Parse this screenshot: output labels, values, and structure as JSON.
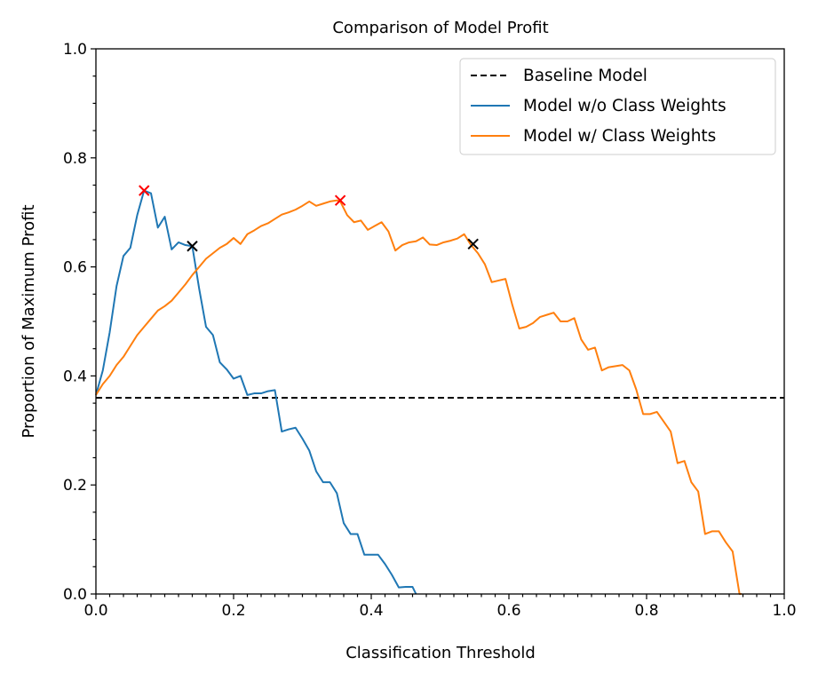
{
  "chart_data": {
    "type": "line",
    "title": "Comparison of Model Profit",
    "xlabel": "Classification Threshold",
    "ylabel": "Proportion of Maximum Profit",
    "xlim": [
      0,
      1
    ],
    "ylim": [
      0,
      1
    ],
    "xticks": [
      "0.0",
      "0.2",
      "0.4",
      "0.6",
      "0.8",
      "1.0"
    ],
    "yticks": [
      "0.0",
      "0.2",
      "0.4",
      "0.6",
      "0.8",
      "1.0"
    ],
    "grid": false,
    "legend_position": "upper-right",
    "series": [
      {
        "name": "Baseline Model",
        "style": "dashed",
        "color": "#000000",
        "x": [
          0,
          1
        ],
        "y": [
          0.36,
          0.36
        ]
      },
      {
        "name": "Model w/o Class Weights",
        "style": "solid",
        "color": "#1f77b4",
        "x": [
          0.0,
          0.01,
          0.02,
          0.03,
          0.04,
          0.05,
          0.06,
          0.07,
          0.08,
          0.09,
          0.1,
          0.11,
          0.12,
          0.13,
          0.14,
          0.15,
          0.16,
          0.17,
          0.18,
          0.19,
          0.2,
          0.21,
          0.22,
          0.23,
          0.24,
          0.25,
          0.26,
          0.27,
          0.28,
          0.29,
          0.3,
          0.31,
          0.32,
          0.33,
          0.34,
          0.35,
          0.36,
          0.37,
          0.38,
          0.39,
          0.4,
          0.41,
          0.42,
          0.43,
          0.44,
          0.45,
          0.46,
          0.465
        ],
        "y": [
          0.365,
          0.41,
          0.48,
          0.565,
          0.62,
          0.635,
          0.695,
          0.74,
          0.735,
          0.672,
          0.692,
          0.632,
          0.645,
          0.64,
          0.638,
          0.56,
          0.49,
          0.475,
          0.425,
          0.412,
          0.395,
          0.4,
          0.365,
          0.368,
          0.368,
          0.372,
          0.374,
          0.298,
          0.302,
          0.305,
          0.285,
          0.263,
          0.225,
          0.205,
          0.205,
          0.185,
          0.13,
          0.11,
          0.11,
          0.072,
          0.072,
          0.072,
          0.055,
          0.035,
          0.012,
          0.013,
          0.013,
          0.0
        ]
      },
      {
        "name": "Model w/ Class Weights",
        "style": "solid",
        "color": "#ff7f0e",
        "x": [
          0.0,
          0.01,
          0.02,
          0.03,
          0.04,
          0.05,
          0.06,
          0.07,
          0.08,
          0.09,
          0.1,
          0.11,
          0.12,
          0.13,
          0.14,
          0.15,
          0.16,
          0.17,
          0.18,
          0.19,
          0.2,
          0.21,
          0.22,
          0.23,
          0.24,
          0.25,
          0.26,
          0.27,
          0.28,
          0.29,
          0.3,
          0.31,
          0.32,
          0.33,
          0.34,
          0.35,
          0.355,
          0.365,
          0.375,
          0.385,
          0.395,
          0.405,
          0.415,
          0.425,
          0.435,
          0.445,
          0.455,
          0.465,
          0.475,
          0.485,
          0.495,
          0.505,
          0.515,
          0.525,
          0.535,
          0.545,
          0.555,
          0.565,
          0.575,
          0.585,
          0.595,
          0.605,
          0.615,
          0.625,
          0.635,
          0.645,
          0.655,
          0.665,
          0.675,
          0.685,
          0.695,
          0.705,
          0.715,
          0.725,
          0.735,
          0.745,
          0.755,
          0.765,
          0.775,
          0.785,
          0.795,
          0.805,
          0.815,
          0.825,
          0.835,
          0.845,
          0.855,
          0.865,
          0.875,
          0.885,
          0.895,
          0.905,
          0.915,
          0.925,
          0.935,
          0.938
        ],
        "y": [
          0.365,
          0.385,
          0.4,
          0.42,
          0.435,
          0.455,
          0.475,
          0.49,
          0.505,
          0.52,
          0.528,
          0.538,
          0.553,
          0.568,
          0.585,
          0.6,
          0.615,
          0.625,
          0.635,
          0.642,
          0.653,
          0.642,
          0.66,
          0.667,
          0.675,
          0.68,
          0.688,
          0.696,
          0.7,
          0.705,
          0.712,
          0.72,
          0.712,
          0.716,
          0.72,
          0.722,
          0.72,
          0.695,
          0.682,
          0.685,
          0.668,
          0.675,
          0.682,
          0.665,
          0.63,
          0.64,
          0.645,
          0.647,
          0.654,
          0.641,
          0.64,
          0.645,
          0.648,
          0.652,
          0.66,
          0.64,
          0.625,
          0.605,
          0.572,
          0.575,
          0.578,
          0.53,
          0.487,
          0.49,
          0.497,
          0.508,
          0.512,
          0.516,
          0.5,
          0.5,
          0.506,
          0.467,
          0.448,
          0.452,
          0.41,
          0.416,
          0.418,
          0.42,
          0.41,
          0.375,
          0.33,
          0.33,
          0.334,
          0.316,
          0.298,
          0.24,
          0.244,
          0.205,
          0.188,
          0.11,
          0.115,
          0.115,
          0.095,
          0.078,
          0.0,
          0.0
        ]
      }
    ],
    "markers": [
      {
        "type": "x",
        "color": "#ff0000",
        "x": 0.07,
        "y": 0.74
      },
      {
        "type": "x",
        "color": "#000000",
        "x": 0.14,
        "y": 0.638
      },
      {
        "type": "x",
        "color": "#ff0000",
        "x": 0.355,
        "y": 0.722
      },
      {
        "type": "x",
        "color": "#000000",
        "x": 0.548,
        "y": 0.642
      }
    ]
  }
}
